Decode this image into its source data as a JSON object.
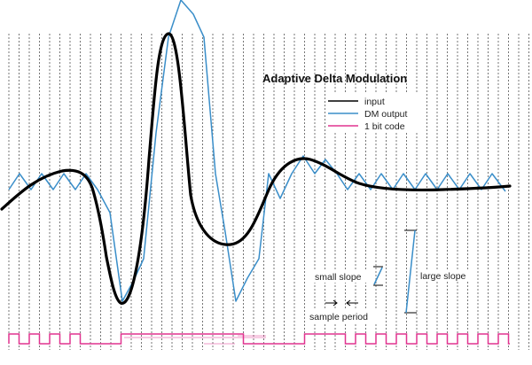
{
  "title": "Adaptive Delta Modulation",
  "legend": {
    "items": [
      {
        "label": "input",
        "color": "#000000"
      },
      {
        "label": "DM output",
        "color": "#3a8ec9"
      },
      {
        "label": "1 bit code",
        "color": "#e0338f"
      }
    ]
  },
  "annotations": {
    "small_slope": "small slope",
    "large_slope": "large slope",
    "sample_period": "sample period"
  },
  "colors": {
    "input": "#000000",
    "dm_output": "#3a8ec9",
    "bit_code": "#e0338f",
    "grid": "#444444"
  }
}
